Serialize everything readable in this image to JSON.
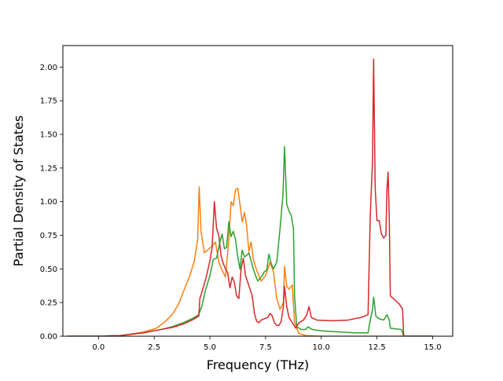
{
  "chart_data": {
    "type": "line",
    "title": "",
    "xlabel": "Frequency (THz)",
    "ylabel": "Partial Density of States",
    "xlim": [
      -1.6,
      15.9
    ],
    "ylim": [
      0.0,
      2.16
    ],
    "xticks": [
      0.0,
      2.5,
      5.0,
      7.5,
      10.0,
      12.5,
      15.0
    ],
    "xtick_labels": [
      "0.0",
      "2.5",
      "5.0",
      "7.5",
      "10.0",
      "12.5",
      "15.0"
    ],
    "yticks": [
      0.0,
      0.25,
      0.5,
      0.75,
      1.0,
      1.25,
      1.5,
      1.75,
      2.0
    ],
    "ytick_labels": [
      "0.00",
      "0.25",
      "0.50",
      "0.75",
      "1.00",
      "1.25",
      "1.50",
      "1.75",
      "2.00"
    ],
    "grid": false,
    "legend": "none",
    "series": [
      {
        "color": "#ff7f0e",
        "points": [
          [
            -1.4,
            0.0
          ],
          [
            0.0,
            0.0
          ],
          [
            1.0,
            0.005
          ],
          [
            2.0,
            0.03
          ],
          [
            2.6,
            0.06
          ],
          [
            3.0,
            0.11
          ],
          [
            3.3,
            0.16
          ],
          [
            3.6,
            0.24
          ],
          [
            3.9,
            0.37
          ],
          [
            4.1,
            0.45
          ],
          [
            4.3,
            0.56
          ],
          [
            4.45,
            0.72
          ],
          [
            4.52,
            1.11
          ],
          [
            4.6,
            0.78
          ],
          [
            4.75,
            0.62
          ],
          [
            4.9,
            0.64
          ],
          [
            5.1,
            0.67
          ],
          [
            5.25,
            0.7
          ],
          [
            5.4,
            0.55
          ],
          [
            5.55,
            0.49
          ],
          [
            5.7,
            0.44
          ],
          [
            5.85,
            0.72
          ],
          [
            5.95,
            1.0
          ],
          [
            6.05,
            0.97
          ],
          [
            6.15,
            1.09
          ],
          [
            6.25,
            1.1
          ],
          [
            6.35,
            0.98
          ],
          [
            6.45,
            0.85
          ],
          [
            6.55,
            0.92
          ],
          [
            6.65,
            0.82
          ],
          [
            6.75,
            0.63
          ],
          [
            6.85,
            0.7
          ],
          [
            6.95,
            0.57
          ],
          [
            7.1,
            0.49
          ],
          [
            7.3,
            0.41
          ],
          [
            7.5,
            0.45
          ],
          [
            7.7,
            0.55
          ],
          [
            7.85,
            0.48
          ],
          [
            8.0,
            0.28
          ],
          [
            8.15,
            0.2
          ],
          [
            8.3,
            0.25
          ],
          [
            8.35,
            0.52
          ],
          [
            8.45,
            0.37
          ],
          [
            8.55,
            0.35
          ],
          [
            8.7,
            0.38
          ],
          [
            8.8,
            0.1
          ],
          [
            9.0,
            0.02
          ],
          [
            9.3,
            0.005
          ],
          [
            10.0,
            0.0
          ],
          [
            14.0,
            0.0
          ],
          [
            15.0,
            0.0
          ]
        ]
      },
      {
        "color": "#2ca02c",
        "points": [
          [
            -1.4,
            0.0
          ],
          [
            0.0,
            0.0
          ],
          [
            1.0,
            0.005
          ],
          [
            2.0,
            0.025
          ],
          [
            2.8,
            0.05
          ],
          [
            3.3,
            0.07
          ],
          [
            3.8,
            0.1
          ],
          [
            4.2,
            0.13
          ],
          [
            4.5,
            0.16
          ],
          [
            4.65,
            0.23
          ],
          [
            4.8,
            0.34
          ],
          [
            5.0,
            0.45
          ],
          [
            5.15,
            0.57
          ],
          [
            5.3,
            0.58
          ],
          [
            5.45,
            0.7
          ],
          [
            5.55,
            0.76
          ],
          [
            5.65,
            0.65
          ],
          [
            5.75,
            0.66
          ],
          [
            5.85,
            0.85
          ],
          [
            5.95,
            0.74
          ],
          [
            6.05,
            0.78
          ],
          [
            6.15,
            0.72
          ],
          [
            6.25,
            0.59
          ],
          [
            6.35,
            0.5
          ],
          [
            6.45,
            0.64
          ],
          [
            6.55,
            0.59
          ],
          [
            6.65,
            0.6
          ],
          [
            6.75,
            0.62
          ],
          [
            6.85,
            0.56
          ],
          [
            6.95,
            0.5
          ],
          [
            7.05,
            0.45
          ],
          [
            7.15,
            0.41
          ],
          [
            7.25,
            0.43
          ],
          [
            7.35,
            0.45
          ],
          [
            7.45,
            0.48
          ],
          [
            7.55,
            0.49
          ],
          [
            7.65,
            0.61
          ],
          [
            7.75,
            0.54
          ],
          [
            7.85,
            0.5
          ],
          [
            8.0,
            0.55
          ],
          [
            8.15,
            0.8
          ],
          [
            8.28,
            1.05
          ],
          [
            8.35,
            1.41
          ],
          [
            8.45,
            0.98
          ],
          [
            8.55,
            0.93
          ],
          [
            8.65,
            0.9
          ],
          [
            8.75,
            0.8
          ],
          [
            8.8,
            0.3
          ],
          [
            8.9,
            0.07
          ],
          [
            9.1,
            0.05
          ],
          [
            9.3,
            0.05
          ],
          [
            9.4,
            0.07
          ],
          [
            9.6,
            0.05
          ],
          [
            10.0,
            0.04
          ],
          [
            11.0,
            0.03
          ],
          [
            11.5,
            0.025
          ],
          [
            12.1,
            0.025
          ],
          [
            12.2,
            0.12
          ],
          [
            12.3,
            0.2
          ],
          [
            12.35,
            0.29
          ],
          [
            12.45,
            0.15
          ],
          [
            12.6,
            0.13
          ],
          [
            12.8,
            0.12
          ],
          [
            12.95,
            0.16
          ],
          [
            13.05,
            0.12
          ],
          [
            13.1,
            0.06
          ],
          [
            13.6,
            0.05
          ],
          [
            13.7,
            0.0
          ],
          [
            15.0,
            0.0
          ]
        ]
      },
      {
        "color": "#d62728",
        "points": [
          [
            -1.4,
            0.0
          ],
          [
            0.0,
            0.0
          ],
          [
            1.0,
            0.005
          ],
          [
            2.0,
            0.025
          ],
          [
            2.8,
            0.05
          ],
          [
            3.3,
            0.065
          ],
          [
            3.8,
            0.09
          ],
          [
            4.2,
            0.12
          ],
          [
            4.5,
            0.15
          ],
          [
            4.55,
            0.28
          ],
          [
            4.7,
            0.36
          ],
          [
            4.85,
            0.45
          ],
          [
            5.0,
            0.56
          ],
          [
            5.1,
            0.66
          ],
          [
            5.2,
            1.0
          ],
          [
            5.3,
            0.8
          ],
          [
            5.4,
            0.75
          ],
          [
            5.5,
            0.6
          ],
          [
            5.6,
            0.54
          ],
          [
            5.7,
            0.5
          ],
          [
            5.8,
            0.47
          ],
          [
            5.9,
            0.36
          ],
          [
            6.0,
            0.44
          ],
          [
            6.1,
            0.4
          ],
          [
            6.2,
            0.3
          ],
          [
            6.3,
            0.28
          ],
          [
            6.4,
            0.5
          ],
          [
            6.5,
            0.58
          ],
          [
            6.6,
            0.45
          ],
          [
            6.7,
            0.4
          ],
          [
            6.8,
            0.35
          ],
          [
            6.9,
            0.3
          ],
          [
            7.0,
            0.17
          ],
          [
            7.1,
            0.11
          ],
          [
            7.2,
            0.1
          ],
          [
            7.3,
            0.12
          ],
          [
            7.45,
            0.13
          ],
          [
            7.6,
            0.14
          ],
          [
            7.7,
            0.17
          ],
          [
            7.8,
            0.15
          ],
          [
            7.9,
            0.1
          ],
          [
            8.0,
            0.08
          ],
          [
            8.1,
            0.08
          ],
          [
            8.2,
            0.11
          ],
          [
            8.3,
            0.22
          ],
          [
            8.35,
            0.37
          ],
          [
            8.45,
            0.22
          ],
          [
            8.55,
            0.14
          ],
          [
            8.7,
            0.1
          ],
          [
            8.85,
            0.06
          ],
          [
            9.0,
            0.1
          ],
          [
            9.2,
            0.12
          ],
          [
            9.35,
            0.16
          ],
          [
            9.45,
            0.22
          ],
          [
            9.55,
            0.14
          ],
          [
            9.8,
            0.12
          ],
          [
            10.5,
            0.115
          ],
          [
            11.2,
            0.12
          ],
          [
            11.8,
            0.14
          ],
          [
            12.1,
            0.16
          ],
          [
            12.2,
            0.9
          ],
          [
            12.3,
            1.3
          ],
          [
            12.35,
            2.06
          ],
          [
            12.42,
            1.1
          ],
          [
            12.5,
            0.86
          ],
          [
            12.6,
            0.86
          ],
          [
            12.7,
            0.76
          ],
          [
            12.8,
            0.73
          ],
          [
            12.9,
            0.75
          ],
          [
            12.95,
            1.1
          ],
          [
            13.0,
            1.22
          ],
          [
            13.05,
            0.9
          ],
          [
            13.1,
            0.3
          ],
          [
            13.3,
            0.27
          ],
          [
            13.5,
            0.24
          ],
          [
            13.65,
            0.2
          ],
          [
            13.7,
            0.0
          ],
          [
            15.0,
            0.0
          ]
        ]
      }
    ]
  }
}
